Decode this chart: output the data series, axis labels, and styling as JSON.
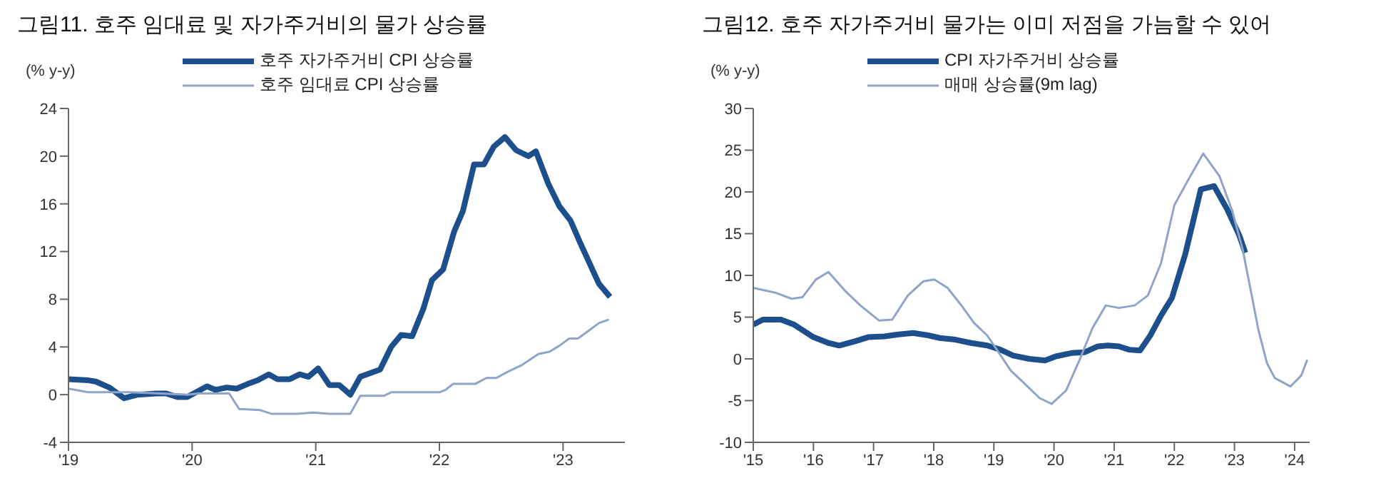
{
  "chart_data": [
    {
      "type": "line",
      "title": "그림11. 호주 임대료 및 자가주거비의 물가 상승률",
      "ylabel": "(% y-y)",
      "legend": "top",
      "grid": false,
      "marker": "none",
      "line_style": "solid",
      "xlim": [
        2019,
        2023.5
      ],
      "xticks": [
        {
          "value": 2019,
          "label": "'19"
        },
        {
          "value": 2020,
          "label": "'20"
        },
        {
          "value": 2021,
          "label": "'21"
        },
        {
          "value": 2022,
          "label": "'22"
        },
        {
          "value": 2023,
          "label": "'23"
        }
      ],
      "ylim": [
        -4,
        24
      ],
      "yticks": [
        -4,
        0,
        4,
        8,
        12,
        16,
        20,
        24
      ],
      "series": [
        {
          "name": "호주 자가주거비 CPI 상승률",
          "color": "#1c4f8c",
          "x": [
            2019.0,
            2019.16,
            2019.22,
            2019.33,
            2019.45,
            2019.56,
            2019.71,
            2019.79,
            2019.88,
            2019.96,
            2020.12,
            2020.19,
            2020.28,
            2020.36,
            2020.45,
            2020.53,
            2020.62,
            2020.69,
            2020.79,
            2020.87,
            2020.94,
            2021.02,
            2021.11,
            2021.19,
            2021.28,
            2021.36,
            2021.44,
            2021.52,
            2021.61,
            2021.69,
            2021.78,
            2021.87,
            2021.94,
            2022.03,
            2022.12,
            2022.19,
            2022.28,
            2022.36,
            2022.44,
            2022.53,
            2022.62,
            2022.72,
            2022.78,
            2022.88,
            2022.97,
            2023.06,
            2023.14,
            2023.29,
            2023.38
          ],
          "values": [
            1.3,
            1.2,
            1.1,
            0.6,
            -0.3,
            0,
            0.1,
            0.1,
            -0.2,
            -0.2,
            0.7,
            0.4,
            0.6,
            0.5,
            0.9,
            1.2,
            1.7,
            1.3,
            1.3,
            1.7,
            1.5,
            2.2,
            0.8,
            0.8,
            0.0,
            1.5,
            1.8,
            2.1,
            4.0,
            5.0,
            4.9,
            7.2,
            9.6,
            10.5,
            13.7,
            15.4,
            19.3,
            19.3,
            20.8,
            21.6,
            20.5,
            20.0,
            20.4,
            17.7,
            15.8,
            14.6,
            12.7,
            9.3,
            8.2
          ]
        },
        {
          "name": "호주 임대료 CPI 상승률",
          "color": "#8fa4c8",
          "x": [
            2019.0,
            2019.16,
            2019.5,
            2019.96,
            2020.05,
            2020.3,
            2020.38,
            2020.55,
            2020.64,
            2020.85,
            2020.98,
            2021.11,
            2021.28,
            2021.36,
            2021.55,
            2021.61,
            2022.0,
            2022.05,
            2022.11,
            2022.29,
            2022.38,
            2022.46,
            2022.55,
            2022.67,
            2022.8,
            2022.89,
            2022.97,
            2023.05,
            2023.12,
            2023.2,
            2023.29,
            2023.37
          ],
          "values": [
            0.5,
            0.2,
            0.2,
            0.0,
            0.1,
            0.1,
            -1.2,
            -1.3,
            -1.6,
            -1.6,
            -1.5,
            -1.6,
            -1.6,
            -0.1,
            -0.1,
            0.2,
            0.2,
            0.4,
            0.9,
            0.9,
            1.4,
            1.4,
            1.9,
            2.5,
            3.4,
            3.6,
            4.1,
            4.7,
            4.7,
            5.3,
            6.0,
            6.3
          ]
        }
      ]
    },
    {
      "type": "line",
      "title": "그림12. 호주 자가주거비 물가는 이미 저점을 가늠할 수 있어",
      "ylabel": "(% y-y)",
      "legend": "top",
      "grid": false,
      "marker": "none",
      "line_style": "solid",
      "xlim": [
        2015,
        2024.25
      ],
      "xticks": [
        {
          "value": 2015,
          "label": "'15"
        },
        {
          "value": 2016,
          "label": "'16"
        },
        {
          "value": 2017,
          "label": "'17"
        },
        {
          "value": 2018,
          "label": "'18"
        },
        {
          "value": 2019,
          "label": "'19"
        },
        {
          "value": 2020,
          "label": "'20"
        },
        {
          "value": 2021,
          "label": "'21"
        },
        {
          "value": 2022,
          "label": "'22"
        },
        {
          "value": 2023,
          "label": "'23"
        },
        {
          "value": 2024,
          "label": "'24"
        }
      ],
      "ylim": [
        -10,
        30
      ],
      "yticks": [
        -10,
        -5,
        0,
        5,
        10,
        15,
        20,
        25,
        30
      ],
      "series": [
        {
          "name": "CPI 자가주거비 상승률",
          "color": "#1c4f8c",
          "x": [
            2015.0,
            2015.16,
            2015.46,
            2015.68,
            2016.0,
            2016.25,
            2016.43,
            2016.69,
            2016.91,
            2017.18,
            2017.39,
            2017.66,
            2017.92,
            2018.1,
            2018.36,
            2018.62,
            2018.89,
            2019.11,
            2019.32,
            2019.59,
            2019.85,
            2020.03,
            2020.29,
            2020.51,
            2020.73,
            2020.9,
            2021.08,
            2021.25,
            2021.43,
            2021.6,
            2021.78,
            2021.96,
            2022.18,
            2022.44,
            2022.66,
            2022.88,
            2023.08,
            2023.18
          ],
          "values": [
            4.1,
            4.7,
            4.7,
            4.1,
            2.6,
            1.9,
            1.6,
            2.1,
            2.6,
            2.7,
            2.9,
            3.1,
            2.8,
            2.5,
            2.3,
            1.9,
            1.6,
            1.1,
            0.4,
            0,
            -0.2,
            0.3,
            0.7,
            0.8,
            1.5,
            1.6,
            1.5,
            1.1,
            1.0,
            2.8,
            5.2,
            7.3,
            12.5,
            20.3,
            20.7,
            17.9,
            14.8,
            12.7
          ]
        },
        {
          "name": "매매 상승률(9m lag)",
          "color": "#8fa4c8",
          "x": [
            2015.0,
            2015.38,
            2015.64,
            2015.82,
            2016.04,
            2016.25,
            2016.52,
            2016.78,
            2017.09,
            2017.31,
            2017.57,
            2017.83,
            2018.01,
            2018.23,
            2018.45,
            2018.67,
            2018.89,
            2019.06,
            2019.28,
            2019.5,
            2019.76,
            2019.96,
            2020.2,
            2020.42,
            2020.64,
            2020.86,
            2021.08,
            2021.34,
            2021.56,
            2021.78,
            2022.0,
            2022.22,
            2022.48,
            2022.75,
            2022.96,
            2023.14,
            2023.27,
            2023.4,
            2023.54,
            2023.67,
            2023.93,
            2024.11,
            2024.21
          ],
          "values": [
            8.5,
            7.9,
            7.2,
            7.4,
            9.5,
            10.4,
            8.2,
            6.4,
            4.6,
            4.7,
            7.6,
            9.3,
            9.5,
            8.5,
            6.5,
            4.3,
            2.8,
            1.0,
            -1.4,
            -2.9,
            -4.7,
            -5.4,
            -3.8,
            -0.2,
            3.7,
            6.4,
            6.1,
            6.4,
            7.6,
            11.5,
            18.4,
            21.3,
            24.6,
            21.9,
            17.8,
            13.0,
            8.2,
            3.4,
            -0.5,
            -2.3,
            -3.3,
            -2.0,
            -0.1
          ]
        }
      ]
    }
  ]
}
